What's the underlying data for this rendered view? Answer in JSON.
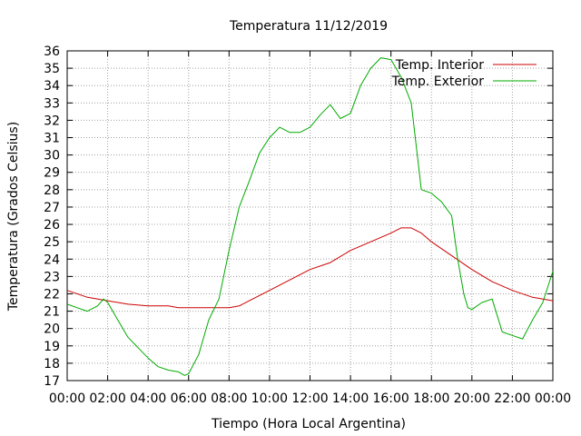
{
  "chart_data": {
    "type": "line",
    "title": "Temperatura 11/12/2019",
    "xlabel": "Tiempo (Hora Local Argentina)",
    "ylabel": "Temperatura (Grados Celsius)",
    "xlim": [
      0,
      24
    ],
    "ylim": [
      17,
      36
    ],
    "grid": true,
    "legend_position": "top-right",
    "x_ticks": [
      "00:00",
      "02:00",
      "04:00",
      "06:00",
      "08:00",
      "10:00",
      "12:00",
      "14:00",
      "16:00",
      "18:00",
      "20:00",
      "22:00",
      "00:00"
    ],
    "y_ticks": [
      "17",
      "18",
      "19",
      "20",
      "21",
      "22",
      "23",
      "24",
      "25",
      "26",
      "27",
      "28",
      "29",
      "30",
      "31",
      "32",
      "33",
      "34",
      "35",
      "36"
    ],
    "series": [
      {
        "name": "Temp. Interior",
        "color": "#cc0000",
        "x": [
          0,
          1,
          2,
          3,
          4,
          5,
          5.5,
          6,
          7,
          8,
          8.5,
          9,
          10,
          11,
          12,
          13,
          14,
          15,
          16,
          16.5,
          17,
          17.5,
          18,
          19,
          20,
          21,
          22,
          23,
          24
        ],
        "y": [
          22.2,
          21.8,
          21.6,
          21.4,
          21.3,
          21.3,
          21.2,
          21.2,
          21.2,
          21.2,
          21.3,
          21.6,
          22.2,
          22.8,
          23.4,
          23.8,
          24.5,
          25.0,
          25.5,
          25.8,
          25.8,
          25.5,
          25.0,
          24.2,
          23.4,
          22.7,
          22.2,
          21.8,
          21.6
        ]
      },
      {
        "name": "Temp. Exterior",
        "color": "#00aa00",
        "x": [
          0,
          0.5,
          1,
          1.5,
          1.8,
          2,
          2.5,
          3,
          3.5,
          4,
          4.5,
          5,
          5.5,
          5.8,
          6,
          6.5,
          7,
          7.5,
          8,
          8.5,
          9,
          9.5,
          10,
          10.5,
          11,
          11.5,
          12,
          12.5,
          13,
          13.5,
          14,
          14.5,
          15,
          15.5,
          16,
          16.5,
          17,
          17.5,
          18,
          18.5,
          19,
          19.3,
          19.6,
          19.8,
          20,
          20.5,
          21,
          21.5,
          22,
          22.5,
          23,
          23.5,
          24
        ],
        "y": [
          21.4,
          21.2,
          21.0,
          21.3,
          21.7,
          21.5,
          20.5,
          19.5,
          18.9,
          18.3,
          17.8,
          17.6,
          17.5,
          17.3,
          17.4,
          18.5,
          20.5,
          21.7,
          24.5,
          27.0,
          28.5,
          30.1,
          31.0,
          31.6,
          31.3,
          31.3,
          31.6,
          32.3,
          32.9,
          32.1,
          32.4,
          34.0,
          35.0,
          35.6,
          35.5,
          34.5,
          33.0,
          28.0,
          27.8,
          27.3,
          26.5,
          24.0,
          22.0,
          21.2,
          21.1,
          21.5,
          21.7,
          19.8,
          19.6,
          19.4,
          20.5,
          21.5,
          23.3
        ]
      }
    ]
  }
}
